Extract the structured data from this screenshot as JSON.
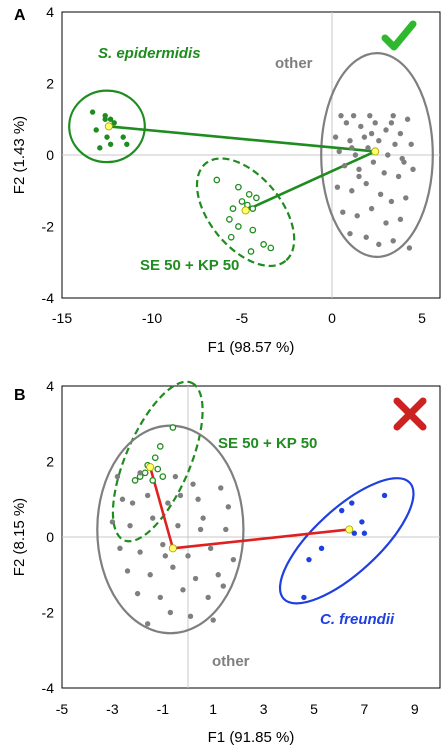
{
  "chart_data": [
    {
      "type": "scatter",
      "panel": "A",
      "xlabel": "F1 (98.57 %)",
      "ylabel": "F2 (1.43 %)",
      "xlim": [
        -15,
        6
      ],
      "ylim": [
        -4,
        4
      ],
      "xticks": [
        "-15",
        "-10",
        "-5",
        "0",
        "5"
      ],
      "yticks": [
        "-4",
        "-2",
        "0",
        "2",
        "4"
      ],
      "status": "check",
      "colors": {
        "epi": "#1e8c1e",
        "mix": "#1e8c1e",
        "other": "#7f7f7f",
        "centroid": "#ffff66",
        "link": "#1e8c1e",
        "status": "#2db82d"
      },
      "groups": [
        {
          "label": "S. epidermidis",
          "style": "filled",
          "color": "#1e8c1e",
          "centroid": [
            -12.4,
            0.8
          ],
          "ellipse": {
            "cx": -12.5,
            "cy": 0.8,
            "rx": 2.1,
            "ry": 1.0,
            "dashed": false
          },
          "points": [
            [
              -13.3,
              1.2
            ],
            [
              -12.6,
              1.1
            ],
            [
              -12.3,
              1.0
            ],
            [
              -12.1,
              0.9
            ],
            [
              -13.1,
              0.7
            ],
            [
              -12.5,
              0.5
            ],
            [
              -11.6,
              0.5
            ],
            [
              -11.4,
              0.3
            ],
            [
              -12.3,
              0.3
            ],
            [
              -12.9,
              0.2
            ],
            [
              -12.6,
              1.0
            ]
          ]
        },
        {
          "label": "SE 50 + KP 50",
          "style": "open",
          "color": "#1e8c1e",
          "centroid": [
            -4.8,
            -1.55
          ],
          "ellipse": {
            "cx": -4.8,
            "cy": -1.6,
            "rx": 3.5,
            "ry": 1.0,
            "angle_data": -0.55,
            "dashed": true
          },
          "points": [
            [
              -6.4,
              -0.7
            ],
            [
              -5.2,
              -0.9
            ],
            [
              -4.6,
              -1.1
            ],
            [
              -4.2,
              -1.2
            ],
            [
              -5.0,
              -1.3
            ],
            [
              -4.7,
              -1.4
            ],
            [
              -5.5,
              -1.5
            ],
            [
              -4.4,
              -1.5
            ],
            [
              -5.7,
              -1.8
            ],
            [
              -5.2,
              -2.0
            ],
            [
              -4.4,
              -2.1
            ],
            [
              -5.6,
              -2.3
            ],
            [
              -3.8,
              -2.5
            ],
            [
              -4.5,
              -2.7
            ],
            [
              -3.4,
              -2.6
            ]
          ]
        },
        {
          "label": "other",
          "style": "filled",
          "color": "#7f7f7f",
          "centroid": [
            2.4,
            0.1
          ],
          "ellipse": {
            "cx": 2.5,
            "cy": 0.0,
            "rx": 3.1,
            "ry": 2.85,
            "dashed": false
          },
          "points": [
            [
              0.5,
              1.1
            ],
            [
              1.2,
              1.1
            ],
            [
              2.1,
              1.1
            ],
            [
              3.4,
              1.1
            ],
            [
              4.2,
              1.0
            ],
            [
              0.8,
              0.9
            ],
            [
              1.6,
              0.8
            ],
            [
              2.4,
              0.9
            ],
            [
              3.0,
              0.7
            ],
            [
              3.8,
              0.6
            ],
            [
              0.2,
              0.5
            ],
            [
              1.0,
              0.4
            ],
            [
              1.8,
              0.5
            ],
            [
              2.6,
              0.4
            ],
            [
              3.5,
              0.3
            ],
            [
              4.4,
              0.3
            ],
            [
              0.4,
              0.1
            ],
            [
              1.3,
              0.0
            ],
            [
              2.0,
              0.2
            ],
            [
              3.1,
              0.0
            ],
            [
              3.9,
              -0.1
            ],
            [
              0.7,
              -0.3
            ],
            [
              1.5,
              -0.4
            ],
            [
              2.3,
              -0.2
            ],
            [
              2.9,
              -0.5
            ],
            [
              3.7,
              -0.6
            ],
            [
              4.5,
              -0.4
            ],
            [
              0.3,
              -0.9
            ],
            [
              1.1,
              -1.0
            ],
            [
              1.9,
              -0.8
            ],
            [
              2.7,
              -1.1
            ],
            [
              3.3,
              -1.3
            ],
            [
              4.1,
              -1.2
            ],
            [
              0.6,
              -1.6
            ],
            [
              1.4,
              -1.7
            ],
            [
              2.2,
              -1.5
            ],
            [
              3.0,
              -1.9
            ],
            [
              3.8,
              -1.8
            ],
            [
              1.0,
              -2.2
            ],
            [
              1.9,
              -2.3
            ],
            [
              2.6,
              -2.5
            ],
            [
              3.4,
              -2.4
            ],
            [
              4.3,
              -2.6
            ],
            [
              1.5,
              -0.6
            ],
            [
              2.2,
              0.6
            ],
            [
              3.3,
              0.9
            ],
            [
              1.1,
              0.2
            ],
            [
              4.0,
              -0.2
            ]
          ]
        }
      ],
      "links": [
        [
          [
            -12.4,
            0.8
          ],
          [
            2.4,
            0.1
          ]
        ],
        [
          [
            -4.8,
            -1.55
          ],
          [
            2.4,
            0.1
          ]
        ]
      ]
    },
    {
      "type": "scatter",
      "panel": "B",
      "xlabel": "F1 (91.85 %)",
      "ylabel": "F2 (8.15 %)",
      "xlim": [
        -5,
        10
      ],
      "ylim": [
        -4,
        4
      ],
      "xticks": [
        "-5",
        "-3",
        "-1",
        "1",
        "3",
        "5",
        "7",
        "9"
      ],
      "yticks": [
        "-4",
        "-2",
        "0",
        "2",
        "4"
      ],
      "status": "cross",
      "colors": {
        "mix": "#1e8c1e",
        "other": "#7f7f7f",
        "freundii": "#1f3fe0",
        "centroid": "#ffff66",
        "link": "#e02020",
        "status": "#cc2222"
      },
      "groups": [
        {
          "label": "SE 50 + KP 50",
          "style": "open",
          "color": "#1e8c1e",
          "centroid": [
            -1.5,
            1.85
          ],
          "ellipse": {
            "cx": -1.2,
            "cy": 2.0,
            "rx": 3.4,
            "ry": 0.85,
            "angle_data": 1.0,
            "dashed": true
          },
          "points": [
            [
              -0.6,
              2.9
            ],
            [
              -1.1,
              2.4
            ],
            [
              -1.3,
              2.1
            ],
            [
              -1.6,
              1.9
            ],
            [
              -1.2,
              1.8
            ],
            [
              -1.0,
              1.6
            ],
            [
              -1.9,
              1.6
            ],
            [
              -1.4,
              1.5
            ],
            [
              -2.1,
              1.5
            ],
            [
              -1.7,
              1.7
            ]
          ]
        },
        {
          "label": "other",
          "style": "filled",
          "color": "#7f7f7f",
          "centroid": [
            -0.6,
            -0.3
          ],
          "ellipse": {
            "cx": -0.7,
            "cy": 0.2,
            "rx": 2.9,
            "ry": 2.75,
            "dashed": false
          },
          "points": [
            [
              -2.8,
              1.6
            ],
            [
              -1.9,
              1.7
            ],
            [
              -0.5,
              1.6
            ],
            [
              0.2,
              1.4
            ],
            [
              1.3,
              1.3
            ],
            [
              -2.6,
              1.0
            ],
            [
              -1.6,
              1.1
            ],
            [
              -0.8,
              0.9
            ],
            [
              0.4,
              1.0
            ],
            [
              1.6,
              0.8
            ],
            [
              -3.0,
              0.4
            ],
            [
              -2.3,
              0.3
            ],
            [
              -1.4,
              0.5
            ],
            [
              -0.4,
              0.3
            ],
            [
              0.6,
              0.5
            ],
            [
              1.5,
              0.2
            ],
            [
              -2.7,
              -0.3
            ],
            [
              -1.9,
              -0.4
            ],
            [
              -1.0,
              -0.2
            ],
            [
              0.0,
              -0.5
            ],
            [
              0.9,
              -0.3
            ],
            [
              1.8,
              -0.6
            ],
            [
              -2.4,
              -0.9
            ],
            [
              -1.5,
              -1.0
            ],
            [
              -0.6,
              -0.8
            ],
            [
              0.3,
              -1.1
            ],
            [
              1.2,
              -1.0
            ],
            [
              -2.0,
              -1.5
            ],
            [
              -1.1,
              -1.6
            ],
            [
              -0.2,
              -1.4
            ],
            [
              0.8,
              -1.6
            ],
            [
              -0.7,
              -2.0
            ],
            [
              0.1,
              -2.1
            ],
            [
              1.0,
              -2.2
            ],
            [
              -1.6,
              -2.3
            ],
            [
              -0.9,
              -0.5
            ],
            [
              0.5,
              0.2
            ],
            [
              -2.2,
              0.9
            ],
            [
              1.4,
              -1.3
            ],
            [
              -0.3,
              1.1
            ]
          ]
        },
        {
          "label": "C. freundii",
          "style": "filled",
          "color": "#1f3fe0",
          "centroid": [
            6.4,
            0.2
          ],
          "ellipse": {
            "cx": 6.3,
            "cy": -0.1,
            "rx": 3.4,
            "ry": 0.85,
            "angle_data": 0.55,
            "dashed": false
          },
          "points": [
            [
              6.5,
              0.9
            ],
            [
              7.8,
              1.1
            ],
            [
              6.1,
              0.7
            ],
            [
              6.9,
              0.4
            ],
            [
              7.0,
              0.1
            ],
            [
              6.6,
              0.1
            ],
            [
              5.3,
              -0.3
            ],
            [
              4.8,
              -0.6
            ],
            [
              4.6,
              -1.6
            ]
          ]
        }
      ],
      "links": [
        [
          [
            -1.5,
            1.85
          ],
          [
            -0.6,
            -0.3
          ]
        ],
        [
          [
            -0.6,
            -0.3
          ],
          [
            6.4,
            0.2
          ]
        ]
      ]
    }
  ]
}
